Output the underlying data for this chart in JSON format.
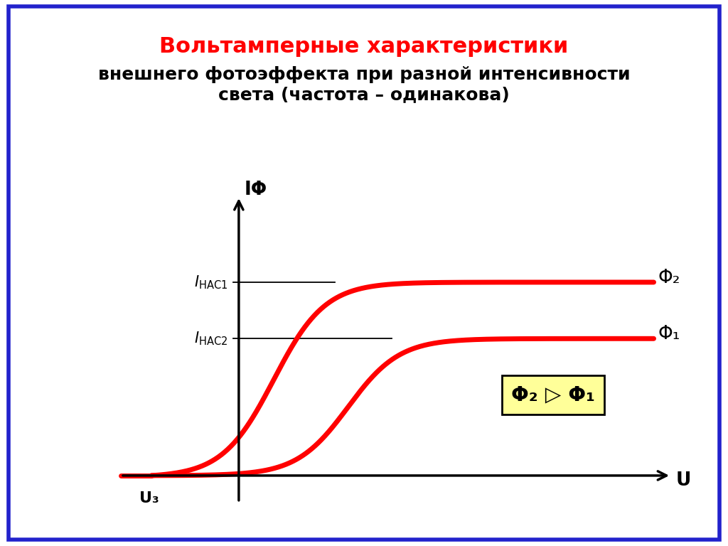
{
  "title_line1": "Вольтамперные характеристики",
  "title_line2": "внешнего фотоэффекта при разной интенсивности\nсвета (частота – одинакова)",
  "title_color": "#ff0000",
  "subtitle_color": "#000000",
  "curve_color": "#ff0000",
  "curve_linewidth": 5.0,
  "background_color": "#ffffff",
  "border_color": "#2222cc",
  "border_linewidth": 4,
  "ylabel": "IΦ",
  "xlabel": "U",
  "uz_label": "U₃",
  "phi2_label": "Φ₂",
  "phi1_label": "Φ₁",
  "box_label": "Φ₂ ▷ Φ₁",
  "box_color": "#ffff99",
  "box_border_color": "#000000",
  "i_sat1": 3.6,
  "i_sat2": 2.55,
  "x_stop": -2.0,
  "x_max": 9.5,
  "x_lim_min": -2.8,
  "x_lim_max": 10.2,
  "y_lim_min": -0.6,
  "y_lim_max": 5.5
}
